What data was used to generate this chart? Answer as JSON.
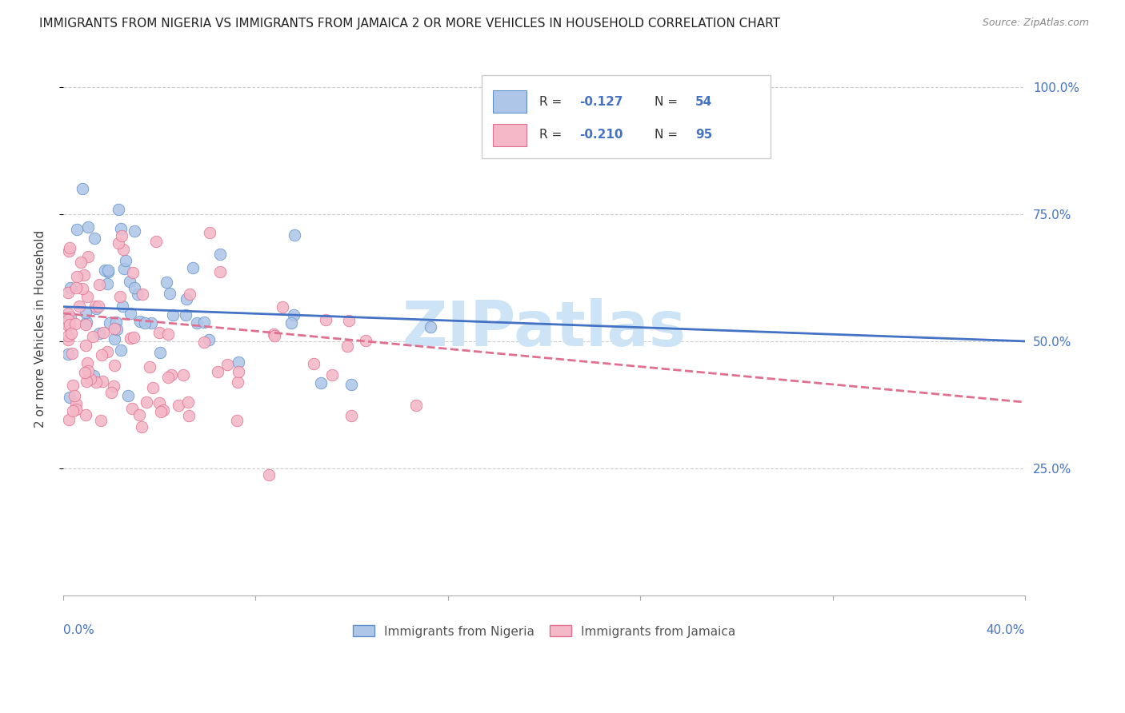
{
  "title": "IMMIGRANTS FROM NIGERIA VS IMMIGRANTS FROM JAMAICA 2 OR MORE VEHICLES IN HOUSEHOLD CORRELATION CHART",
  "source": "Source: ZipAtlas.com",
  "ylabel": "2 or more Vehicles in Household",
  "nigeria_color": "#aec6e8",
  "jamaica_color": "#f4b8c8",
  "nigeria_edge_color": "#6090c8",
  "jamaica_edge_color": "#e07090",
  "nigeria_line_color": "#4472C4",
  "jamaica_line_color": "#e07090",
  "nigeria_R": -0.127,
  "nigeria_N": 54,
  "jamaica_R": -0.21,
  "jamaica_N": 95,
  "nigeria_label": "Immigrants from Nigeria",
  "jamaica_label": "Immigrants from Jamaica",
  "blue_color": "#4472C4",
  "watermark": "ZIPatlas",
  "watermark_color": "#cce4f5",
  "right_tick_color": "#4472C4",
  "title_color": "#222222",
  "source_color": "#888888",
  "ylabel_color": "#444444",
  "grid_color": "#cccccc",
  "legend_edge_color": "#cccccc",
  "xlim_max": 0.4,
  "ylim_min": 0.0,
  "ylim_max": 1.05
}
